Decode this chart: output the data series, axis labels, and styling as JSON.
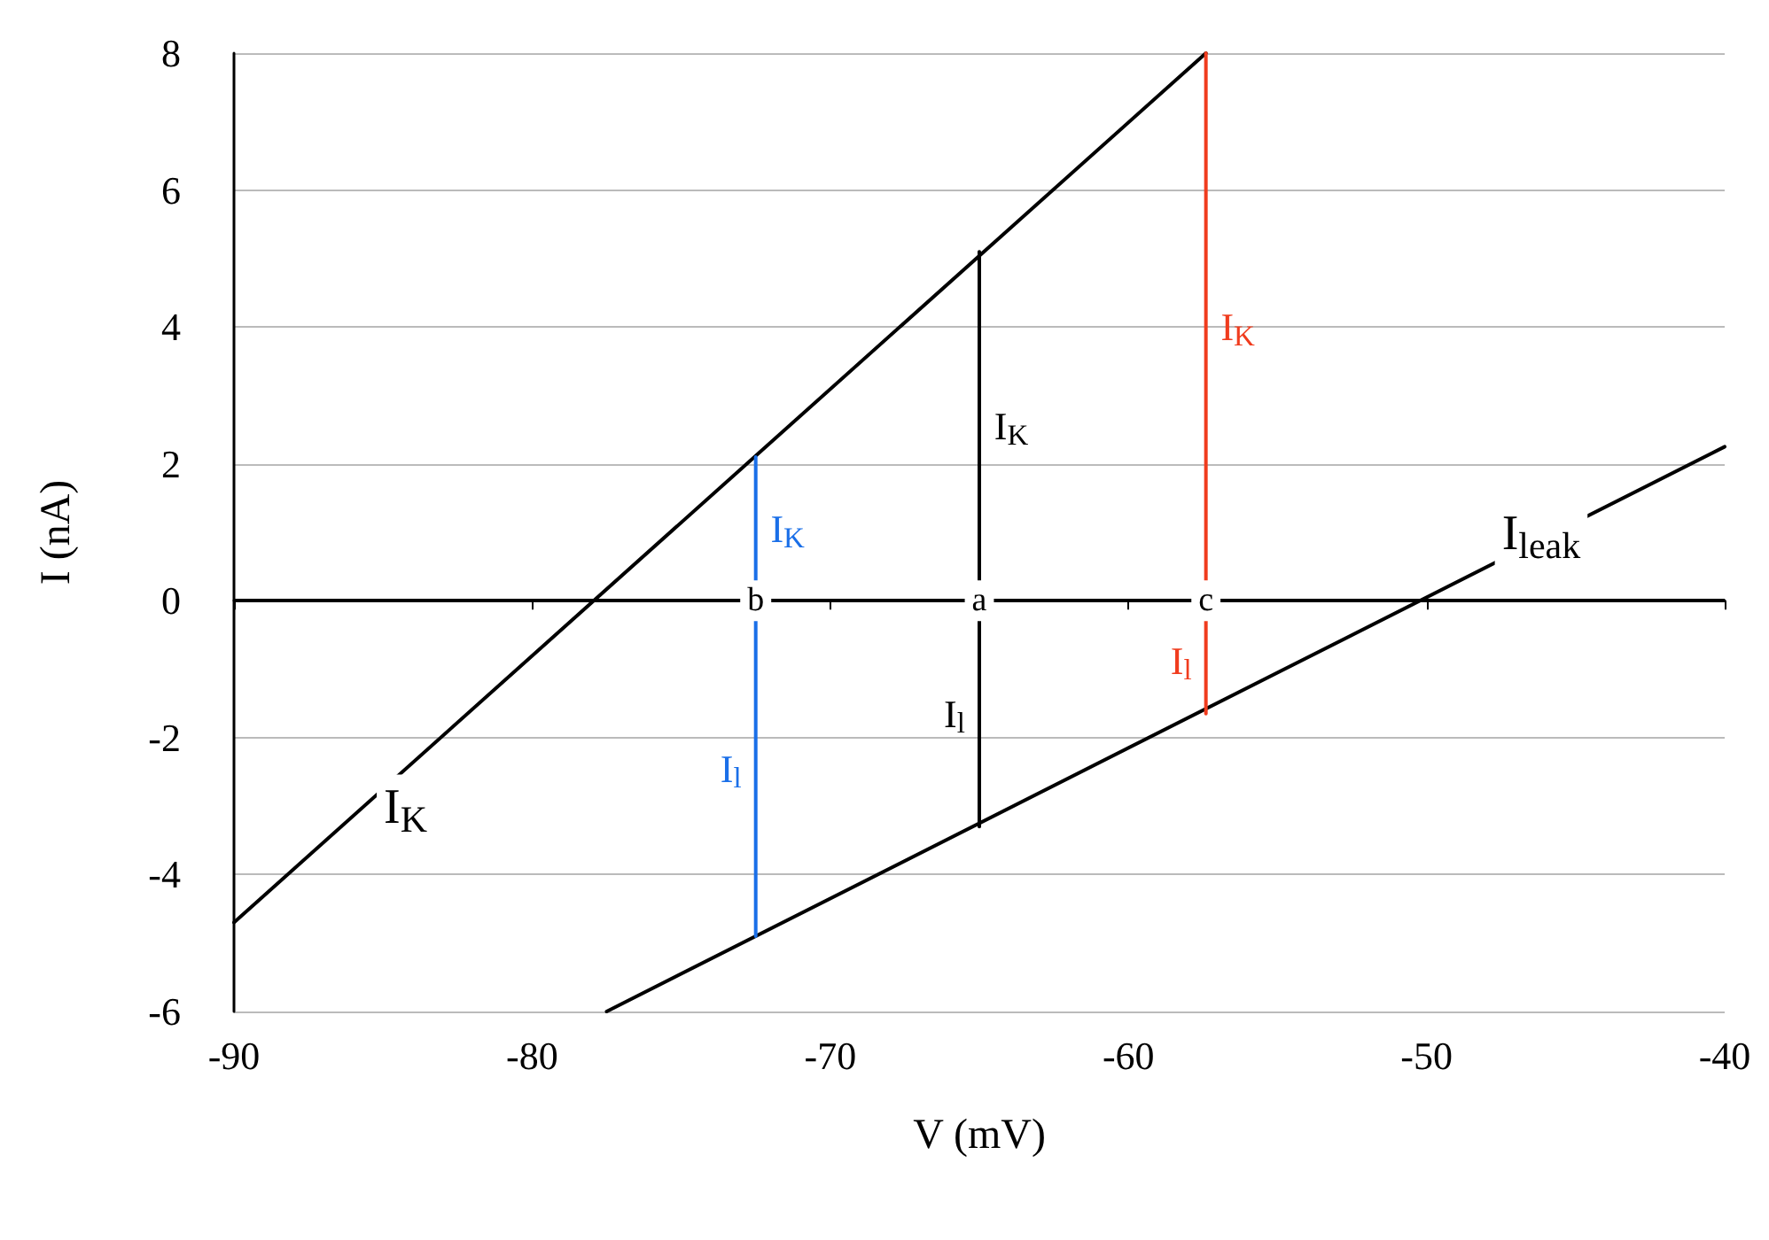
{
  "chart_data": {
    "type": "line",
    "xlabel": "V (mV)",
    "ylabel": "I (nA)",
    "xlim": [
      -90,
      -40
    ],
    "xticks": [
      -90,
      -80,
      -70,
      -60,
      -50,
      -40
    ],
    "ylim": [
      -6,
      8
    ],
    "yticks": [
      -6,
      -4,
      -2,
      0,
      2,
      4,
      6,
      8
    ],
    "grid": "y",
    "legend": false,
    "line_style": "solid",
    "series": [
      {
        "name": "I$_{K}$",
        "color": "#000000",
        "x": [
          -90,
          -57.4
        ],
        "values": [
          -4.7,
          8
        ]
      },
      {
        "name": "I$_{leak}$",
        "color": "#000000",
        "x": [
          -77.5,
          -40
        ],
        "values": [
          -6,
          2.25
        ]
      },
      {
        "name": "I$_{K}$",
        "color": "#1a6fe8",
        "x": [
          -72.5,
          -72.5
        ],
        "values": [
          2.1,
          0
        ]
      },
      {
        "name": "I$_{l}$",
        "color": "#1a6fe8",
        "x": [
          -72.5,
          -72.5
        ],
        "values": [
          0,
          -4.9
        ]
      },
      {
        "name": "I$_{K}$",
        "color": "#000000",
        "x": [
          -65,
          -65
        ],
        "values": [
          5.1,
          0
        ]
      },
      {
        "name": "I$_{l}$",
        "color": "#000000",
        "x": [
          -65,
          -65
        ],
        "values": [
          0,
          -3.3
        ]
      },
      {
        "name": "I$_{K}$",
        "color": "#f03c1e",
        "x": [
          -57.4,
          -57.4
        ],
        "values": [
          8,
          0
        ]
      },
      {
        "name": "I$_{l}$",
        "color": "#f03c1e",
        "x": [
          -57.4,
          -57.4
        ],
        "values": [
          0,
          -1.65
        ]
      }
    ],
    "ref_lines": [
      {
        "axis": "y",
        "value": 0,
        "color": "#000000"
      }
    ],
    "annotations": [
      {
        "text": "b",
        "x": -72.5,
        "y": 0
      },
      {
        "text": "a",
        "x": -65,
        "y": 0
      },
      {
        "text": "c",
        "x": -57.4,
        "y": 0
      }
    ]
  }
}
